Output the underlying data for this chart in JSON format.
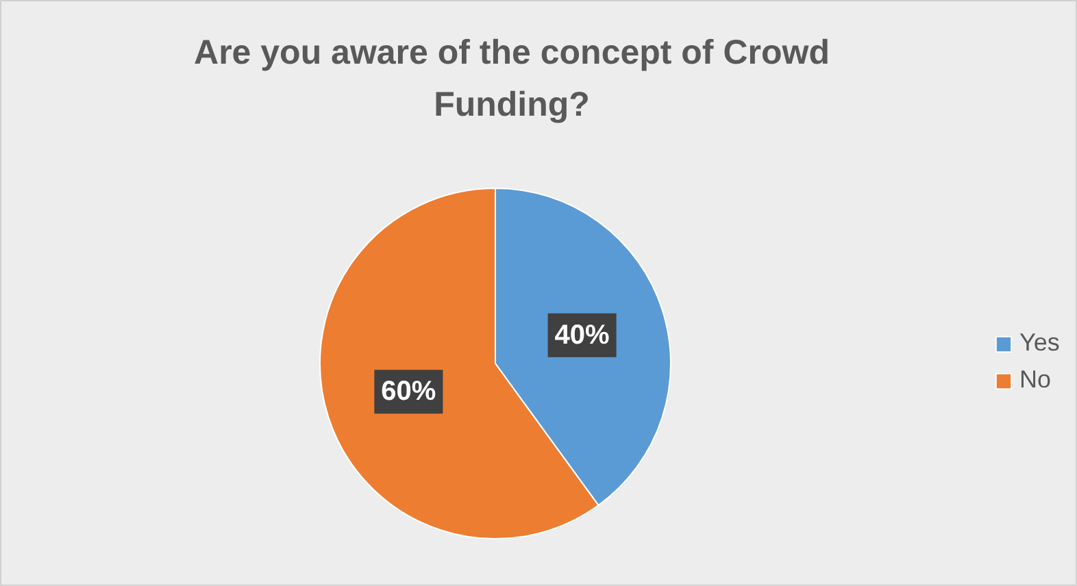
{
  "chart_data": {
    "type": "pie",
    "title": "Are you aware of the concept of Crowd Funding?",
    "categories": [
      "Yes",
      "No"
    ],
    "values": [
      40,
      60
    ],
    "value_labels": [
      "40%",
      "60%"
    ],
    "colors": [
      "#5b9bd5",
      "#ed7d31"
    ],
    "legend": "right"
  }
}
